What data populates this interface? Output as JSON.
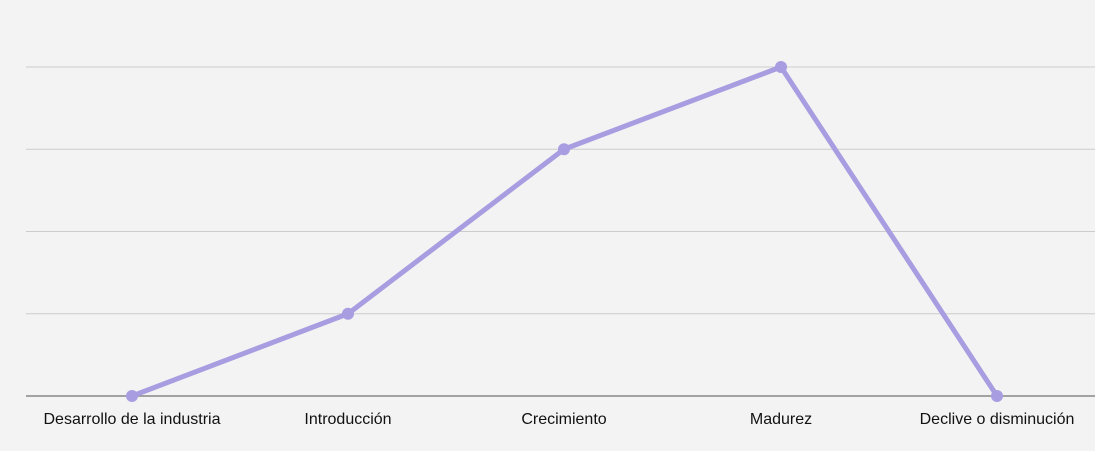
{
  "chart_data": {
    "type": "line",
    "categories": [
      "Desarrollo de la industria",
      "Introducción",
      "Crecimiento",
      "Madurez",
      "Declive o disminución"
    ],
    "series": [
      {
        "values": [
          0,
          1,
          3,
          4,
          0
        ],
        "color": "#a79de0"
      }
    ],
    "ylim": [
      0,
      4
    ],
    "grid": true,
    "gridlines": 4,
    "legend": "none"
  },
  "colors": {
    "background": "#f3f3f3",
    "grid": "#cccccc",
    "axis": "#888888",
    "line": "#a79de0"
  }
}
